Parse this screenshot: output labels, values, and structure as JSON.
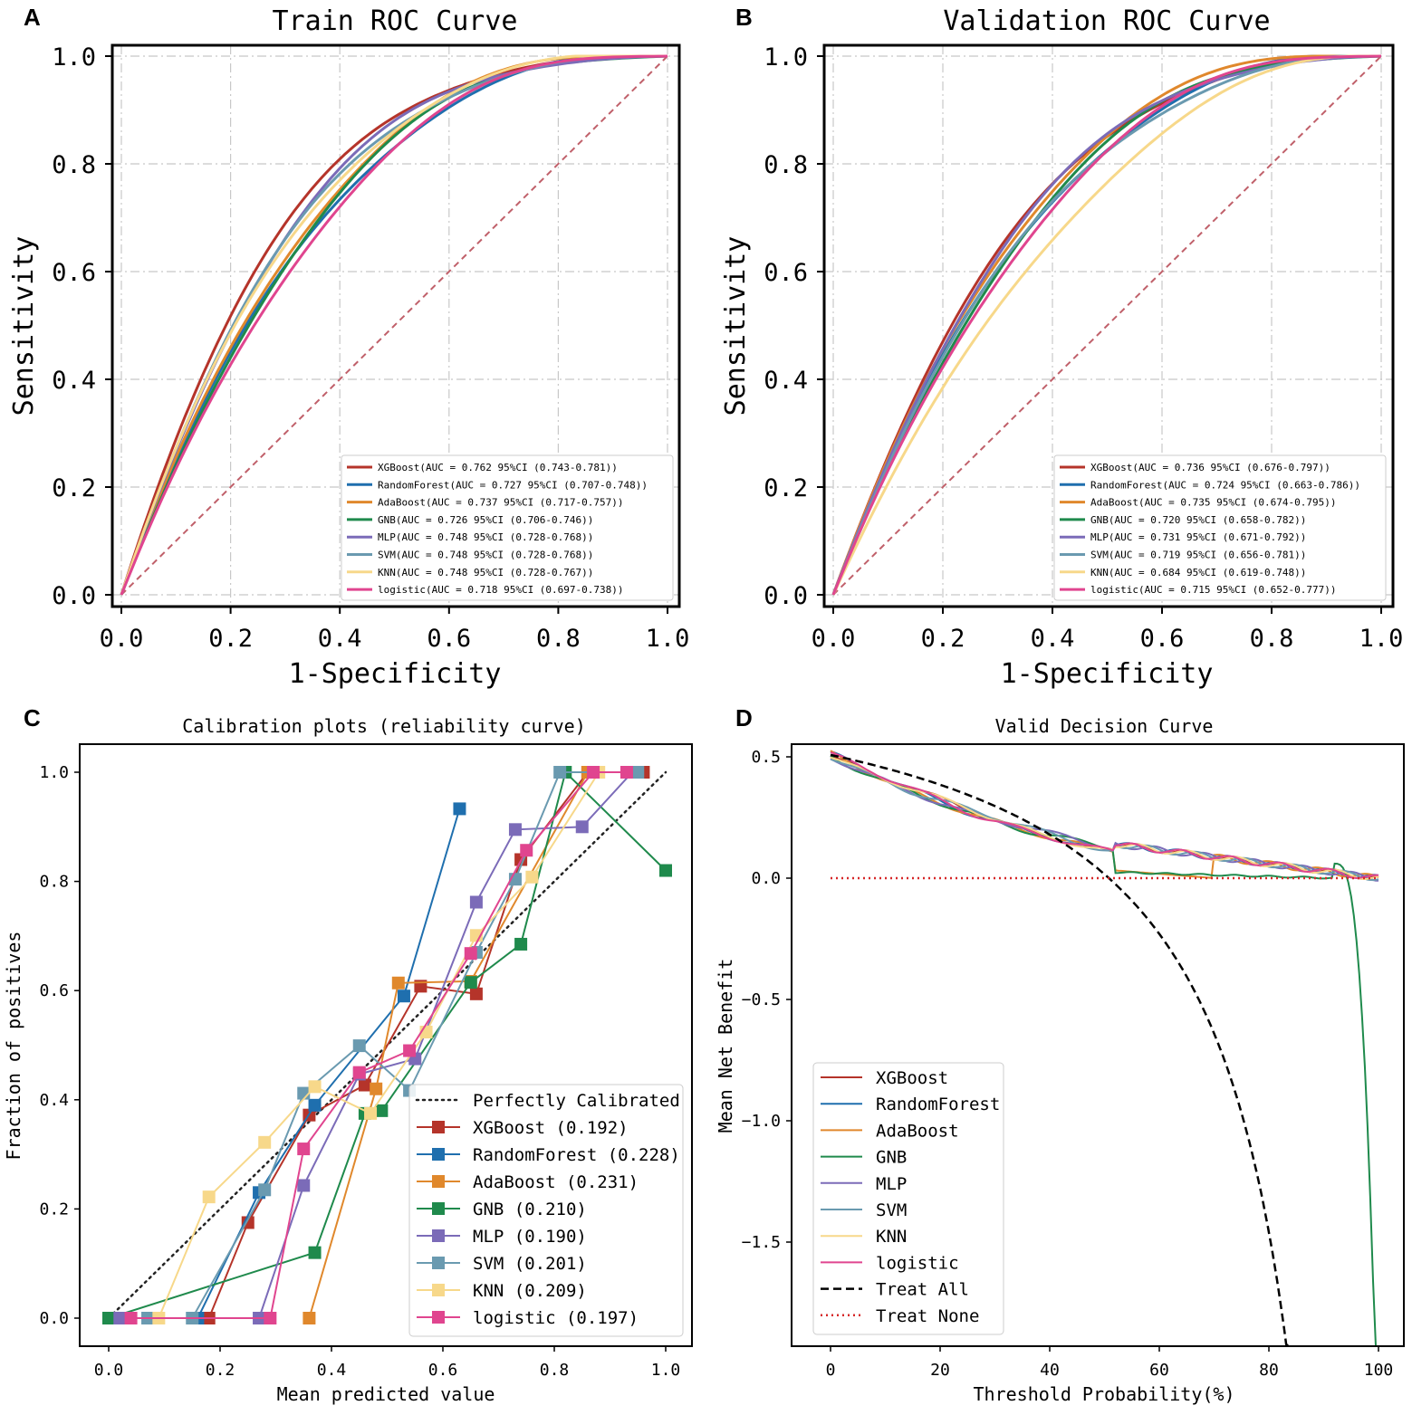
{
  "colors": {
    "XGBoost": "#b5342a",
    "RandomForest": "#1f6fae",
    "AdaBoost": "#e0882c",
    "GNB": "#1f8a4c",
    "MLP": "#7b6bb8",
    "SVM": "#6a9ab0",
    "KNN": "#f7d88a",
    "logistic": "#e0458f",
    "diagonal_roc": "#c0606a",
    "treat_all": "#000000",
    "treat_none": "#d62728"
  },
  "chart_data": [
    {
      "type": "line",
      "panel": "A",
      "title": "Train ROC Curve",
      "xlabel": "1-Specificity",
      "ylabel": "Sensitivity",
      "xlim": [
        0,
        1
      ],
      "ylim": [
        0,
        1
      ],
      "xticks": [
        "0.0",
        "0.2",
        "0.4",
        "0.6",
        "0.8",
        "1.0"
      ],
      "yticks": [
        "0.0",
        "0.2",
        "0.4",
        "0.6",
        "0.8",
        "1.0"
      ],
      "grid": true,
      "legend_position": "lower-right",
      "series": [
        {
          "key": "XGBoost",
          "label": "XGBoost(AUC = 0.762 95%CI (0.743-0.781))",
          "auc": 0.762
        },
        {
          "key": "RandomForest",
          "label": "RandomForest(AUC = 0.727 95%CI (0.707-0.748))",
          "auc": 0.727
        },
        {
          "key": "AdaBoost",
          "label": "AdaBoost(AUC = 0.737 95%CI (0.717-0.757))",
          "auc": 0.737
        },
        {
          "key": "GNB",
          "label": "GNB(AUC = 0.726 95%CI (0.706-0.746))",
          "auc": 0.726
        },
        {
          "key": "MLP",
          "label": "MLP(AUC = 0.748 95%CI (0.728-0.768))",
          "auc": 0.748
        },
        {
          "key": "SVM",
          "label": "SVM(AUC = 0.748 95%CI (0.728-0.768))",
          "auc": 0.748
        },
        {
          "key": "KNN",
          "label": "KNN(AUC = 0.748 95%CI (0.728-0.767))",
          "auc": 0.748
        },
        {
          "key": "logistic",
          "label": "logistic(AUC = 0.718 95%CI (0.697-0.738))",
          "auc": 0.718
        }
      ]
    },
    {
      "type": "line",
      "panel": "B",
      "title": "Validation ROC Curve",
      "xlabel": "1-Specificity",
      "ylabel": "Sensitivity",
      "xlim": [
        0,
        1
      ],
      "ylim": [
        0,
        1
      ],
      "xticks": [
        "0.0",
        "0.2",
        "0.4",
        "0.6",
        "0.8",
        "1.0"
      ],
      "yticks": [
        "0.0",
        "0.2",
        "0.4",
        "0.6",
        "0.8",
        "1.0"
      ],
      "grid": true,
      "legend_position": "lower-right",
      "series": [
        {
          "key": "XGBoost",
          "label": "XGBoost(AUC = 0.736 95%CI (0.676-0.797))",
          "auc": 0.736
        },
        {
          "key": "RandomForest",
          "label": "RandomForest(AUC = 0.724 95%CI (0.663-0.786))",
          "auc": 0.724
        },
        {
          "key": "AdaBoost",
          "label": "AdaBoost(AUC = 0.735 95%CI (0.674-0.795))",
          "auc": 0.735
        },
        {
          "key": "GNB",
          "label": "GNB(AUC = 0.720 95%CI (0.658-0.782))",
          "auc": 0.72
        },
        {
          "key": "MLP",
          "label": "MLP(AUC = 0.731 95%CI (0.671-0.792))",
          "auc": 0.731
        },
        {
          "key": "SVM",
          "label": "SVM(AUC = 0.719 95%CI (0.656-0.781))",
          "auc": 0.719
        },
        {
          "key": "KNN",
          "label": "KNN(AUC = 0.684 95%CI (0.619-0.748))",
          "auc": 0.684
        },
        {
          "key": "logistic",
          "label": "logistic(AUC = 0.715 95%CI (0.652-0.777))",
          "auc": 0.715
        }
      ]
    },
    {
      "type": "line",
      "panel": "C",
      "title": "Calibration plots  (reliability curve)",
      "xlabel": "Mean predicted value",
      "ylabel": "Fraction of positives",
      "xlim": [
        -0.02,
        1.02
      ],
      "ylim": [
        -0.05,
        1.05
      ],
      "xticks": [
        "0.0",
        "0.2",
        "0.4",
        "0.6",
        "0.8",
        "1.0"
      ],
      "yticks": [
        "0.0",
        "0.2",
        "0.4",
        "0.6",
        "0.8",
        "1.0"
      ],
      "legend_position": "lower-right",
      "reference_label": "Perfectly Calibrated",
      "series": [
        {
          "key": "XGBoost",
          "label": "XGBoost (0.192)",
          "points": [
            [
              0.02,
              0
            ],
            [
              0.18,
              0
            ],
            [
              0.25,
              0.175
            ],
            [
              0.36,
              0.372
            ],
            [
              0.46,
              0.427
            ],
            [
              0.56,
              0.608
            ],
            [
              0.66,
              0.594
            ],
            [
              0.74,
              0.84
            ],
            [
              0.86,
              1.0
            ],
            [
              0.96,
              1.0
            ]
          ]
        },
        {
          "key": "RandomForest",
          "label": "RandomForest (0.228)",
          "points": [
            [
              0.02,
              0
            ],
            [
              0.16,
              0
            ],
            [
              0.27,
              0.23
            ],
            [
              0.37,
              0.39
            ],
            [
              0.53,
              0.59
            ],
            [
              0.63,
              0.933
            ]
          ]
        },
        {
          "key": "AdaBoost",
          "label": "AdaBoost (0.231)",
          "points": [
            [
              0.36,
              0
            ],
            [
              0.48,
              0.42
            ],
            [
              0.52,
              0.614
            ],
            [
              0.65,
              0.617
            ],
            [
              0.86,
              1.0
            ]
          ]
        },
        {
          "key": "GNB",
          "label": "GNB (0.210)",
          "points": [
            [
              0.0,
              0
            ],
            [
              0.37,
              0.12
            ],
            [
              0.46,
              0.375
            ],
            [
              0.49,
              0.38
            ],
            [
              0.65,
              0.615
            ],
            [
              0.74,
              0.685
            ],
            [
              0.82,
              1.0
            ],
            [
              1.0,
              0.82
            ]
          ]
        },
        {
          "key": "MLP",
          "label": "MLP (0.190)",
          "points": [
            [
              0.02,
              0
            ],
            [
              0.27,
              0
            ],
            [
              0.35,
              0.243
            ],
            [
              0.45,
              0.447
            ],
            [
              0.55,
              0.475
            ],
            [
              0.66,
              0.762
            ],
            [
              0.73,
              0.895
            ],
            [
              0.85,
              0.9
            ],
            [
              0.94,
              1.0
            ]
          ]
        },
        {
          "key": "SVM",
          "label": "SVM (0.201)",
          "points": [
            [
              0.07,
              0
            ],
            [
              0.15,
              0
            ],
            [
              0.28,
              0.235
            ],
            [
              0.35,
              0.412
            ],
            [
              0.45,
              0.499
            ],
            [
              0.54,
              0.417
            ],
            [
              0.66,
              0.67
            ],
            [
              0.73,
              0.804
            ],
            [
              0.81,
              1.0
            ],
            [
              0.95,
              1.0
            ]
          ]
        },
        {
          "key": "KNN",
          "label": "KNN (0.209)",
          "points": [
            [
              0.09,
              0
            ],
            [
              0.18,
              0.222
            ],
            [
              0.28,
              0.322
            ],
            [
              0.37,
              0.424
            ],
            [
              0.47,
              0.375
            ],
            [
              0.57,
              0.524
            ],
            [
              0.66,
              0.701
            ],
            [
              0.76,
              0.808
            ],
            [
              0.88,
              1.0
            ]
          ]
        },
        {
          "key": "logistic",
          "label": "logistic (0.197)",
          "points": [
            [
              0.04,
              0
            ],
            [
              0.29,
              0
            ],
            [
              0.35,
              0.31
            ],
            [
              0.45,
              0.45
            ],
            [
              0.54,
              0.49
            ],
            [
              0.65,
              0.668
            ],
            [
              0.75,
              0.857
            ],
            [
              0.87,
              1.0
            ],
            [
              0.93,
              1.0
            ]
          ]
        }
      ]
    },
    {
      "type": "line",
      "panel": "D",
      "title": "Valid Decision Curve",
      "xlabel": "Threshold Probability(%)",
      "ylabel": "Mean Net Benefit",
      "xlim": [
        -4,
        103
      ],
      "ylim": [
        -1.93,
        0.58
      ],
      "xticks": [
        "0",
        "20",
        "40",
        "60",
        "80",
        "100"
      ],
      "yticks": [
        "0.5",
        "0.0",
        "−0.5",
        "−1.0",
        "−1.5"
      ],
      "legend_position": "lower-left",
      "prevalence": 0.508,
      "legend": [
        {
          "key": "XGBoost",
          "label": "XGBoost",
          "style": "solid"
        },
        {
          "key": "RandomForest",
          "label": "RandomForest",
          "style": "solid"
        },
        {
          "key": "AdaBoost",
          "label": "AdaBoost",
          "style": "solid"
        },
        {
          "key": "GNB",
          "label": "GNB",
          "style": "solid"
        },
        {
          "key": "MLP",
          "label": "MLP",
          "style": "solid"
        },
        {
          "key": "SVM",
          "label": "SVM",
          "style": "solid"
        },
        {
          "key": "KNN",
          "label": "KNN",
          "style": "solid"
        },
        {
          "key": "logistic",
          "label": "logistic",
          "style": "solid"
        },
        {
          "key": "treat_all",
          "label": "Treat All",
          "style": "dashed"
        },
        {
          "key": "treat_none",
          "label": "Treat None",
          "style": "dotted"
        }
      ]
    }
  ]
}
